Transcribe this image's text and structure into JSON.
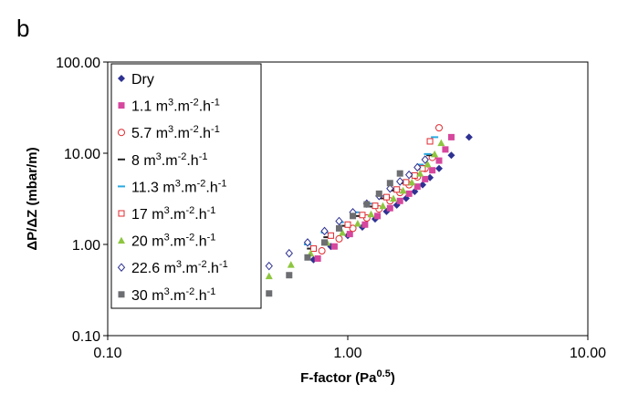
{
  "panel_label": "b",
  "chart_data": {
    "type": "scatter",
    "title": "",
    "xlabel": "F-factor (Pa",
    "xlabel_sup": "0.5",
    "xlabel_end": ")",
    "ylabel": "ΔP/ΔZ (mbar/m)",
    "x_scale": "log",
    "y_scale": "log",
    "xlim": [
      0.1,
      10
    ],
    "ylim": [
      0.1,
      100
    ],
    "x_ticks": [
      0.1,
      1,
      10
    ],
    "x_tick_labels": [
      "0.10",
      "1.00",
      "10.00"
    ],
    "y_ticks": [
      0.1,
      1,
      10,
      100
    ],
    "y_tick_labels": [
      "0.10",
      "1.00",
      "10.00",
      "100.00"
    ],
    "grid": false,
    "legend": "top-left",
    "series": [
      {
        "name": "Dry",
        "unit": "",
        "marker": "diamond-filled",
        "color": "#2e3192",
        "x": [
          0.72,
          0.85,
          1.0,
          1.15,
          1.3,
          1.45,
          1.6,
          1.75,
          1.9,
          2.05,
          2.2,
          2.4,
          2.7,
          3.2
        ],
        "y": [
          0.68,
          0.95,
          1.25,
          1.55,
          1.9,
          2.3,
          2.7,
          3.2,
          3.8,
          4.5,
          5.4,
          6.8,
          9.5,
          15.0
        ]
      },
      {
        "name": "1.1 m",
        "unit": ".m",
        "marker": "square-filled",
        "color": "#d6479e",
        "x": [
          0.75,
          0.88,
          1.02,
          1.18,
          1.33,
          1.5,
          1.65,
          1.8,
          1.95,
          2.1,
          2.25,
          2.4,
          2.55,
          2.7
        ],
        "y": [
          0.7,
          0.95,
          1.3,
          1.65,
          2.05,
          2.5,
          3.0,
          3.6,
          4.3,
          5.2,
          6.5,
          8.3,
          11.0,
          15.0
        ]
      },
      {
        "name": "5.7 m",
        "unit": ".m",
        "marker": "circle-open",
        "color": "#e0282e",
        "x": [
          0.78,
          0.92,
          1.05,
          1.2,
          1.35,
          1.5,
          1.65,
          1.8,
          1.95,
          2.1,
          2.25,
          2.4
        ],
        "y": [
          0.85,
          1.15,
          1.5,
          1.95,
          2.45,
          3.0,
          3.7,
          4.5,
          5.5,
          6.8,
          9.0,
          19.0
        ]
      },
      {
        "name": "8 m",
        "unit": ".m",
        "marker": "dash",
        "color": "#222222",
        "x": [
          0.7,
          0.82,
          0.95,
          1.1,
          1.25,
          1.4,
          1.55,
          1.7,
          1.85,
          2.0,
          2.2
        ],
        "y": [
          0.9,
          1.2,
          1.6,
          2.05,
          2.6,
          3.2,
          3.9,
          4.7,
          5.6,
          7.0,
          9.5
        ]
      },
      {
        "name": "11.3 m",
        "unit": ".m",
        "marker": "dash",
        "color": "#29aae1",
        "x": [
          0.68,
          0.8,
          0.93,
          1.08,
          1.22,
          1.38,
          1.52,
          1.68,
          1.85,
          2.0,
          2.15,
          2.3
        ],
        "y": [
          1.0,
          1.35,
          1.75,
          2.25,
          2.8,
          3.4,
          4.1,
          5.0,
          6.0,
          7.5,
          9.8,
          15.0
        ]
      },
      {
        "name": "17 m",
        "unit": ".m",
        "marker": "square-open",
        "color": "#e0282e",
        "x": [
          0.72,
          0.85,
          1.0,
          1.15,
          1.3,
          1.45,
          1.6,
          1.75,
          1.9,
          2.05,
          2.2
        ],
        "y": [
          0.9,
          1.25,
          1.65,
          2.1,
          2.65,
          3.3,
          4.0,
          4.8,
          5.7,
          6.8,
          13.5
        ]
      },
      {
        "name": "20 m",
        "unit": ".m",
        "marker": "triangle-filled",
        "color": "#8dc63f",
        "x": [
          0.47,
          0.58,
          0.7,
          0.82,
          0.95,
          1.1,
          1.25,
          1.4,
          1.55,
          1.7,
          1.85,
          2.0,
          2.15,
          2.3,
          2.45
        ],
        "y": [
          0.45,
          0.6,
          0.8,
          1.05,
          1.35,
          1.7,
          2.15,
          2.65,
          3.2,
          3.9,
          4.8,
          6.0,
          7.6,
          9.8,
          13.0
        ]
      },
      {
        "name": "22.6 m",
        "unit": ".m",
        "marker": "diamond-open",
        "color": "#2e3192",
        "x": [
          0.47,
          0.57,
          0.68,
          0.8,
          0.92,
          1.05,
          1.2,
          1.35,
          1.5,
          1.65,
          1.8,
          1.95,
          2.1
        ],
        "y": [
          0.58,
          0.8,
          1.05,
          1.4,
          1.8,
          2.25,
          2.8,
          3.4,
          4.1,
          4.9,
          5.8,
          7.0,
          8.5
        ]
      },
      {
        "name": "30 m",
        "unit": ".m",
        "marker": "square-filled",
        "color": "#6d6e71",
        "x": [
          0.47,
          0.57,
          0.68,
          0.8,
          0.92,
          1.05,
          1.2,
          1.35,
          1.5,
          1.65
        ],
        "y": [
          0.29,
          0.46,
          0.72,
          1.05,
          1.5,
          2.05,
          2.75,
          3.6,
          4.7,
          6.0
        ]
      }
    ],
    "unit_sup1": "3",
    "unit_mid": "-2",
    "unit_tail": ".h",
    "unit_sup2": "-1"
  }
}
